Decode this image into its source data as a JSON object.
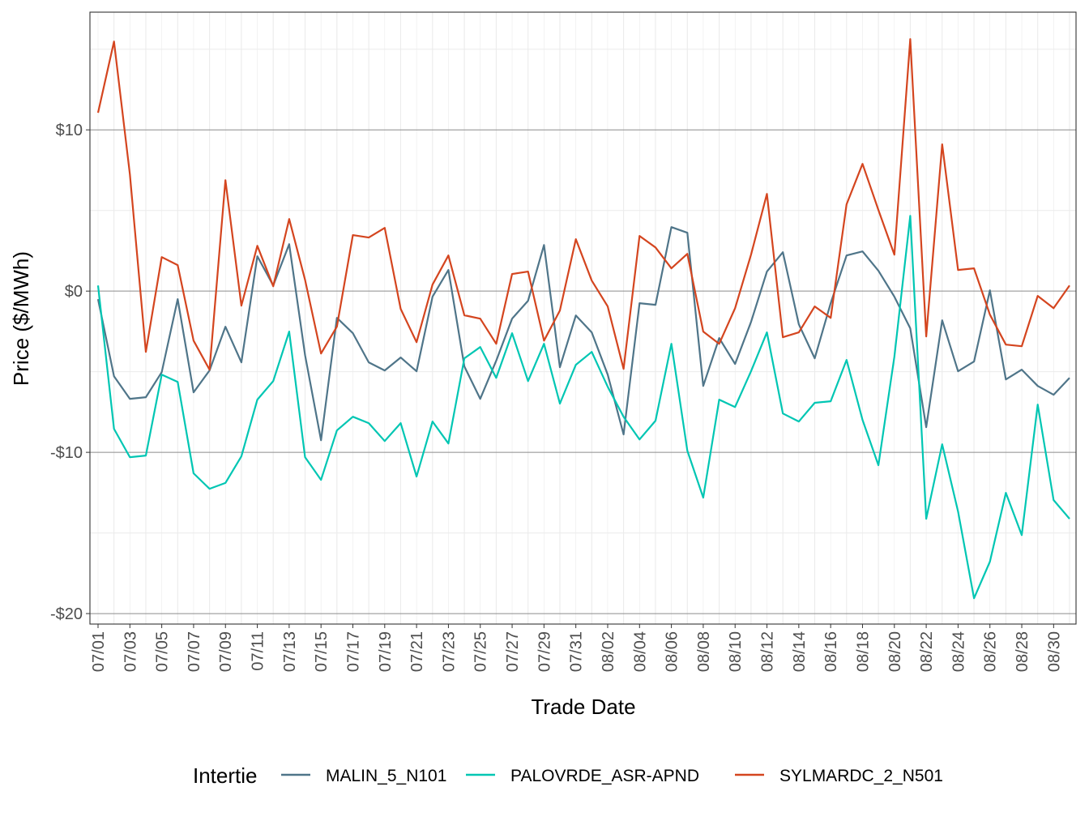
{
  "chart_data": {
    "type": "line",
    "xlabel": "Trade Date",
    "ylabel": "Price ($/MWh)",
    "ylim": [
      -20.65,
      17.3
    ],
    "y_ticks": [
      {
        "value": 10,
        "label": "$10"
      },
      {
        "value": 0,
        "label": "$0"
      },
      {
        "value": -10,
        "label": "-$10"
      },
      {
        "value": -20,
        "label": "-$20"
      }
    ],
    "grid": true,
    "legend_position": "bottom",
    "legend_title": "Intertie",
    "x": [
      "07/01",
      "07/02",
      "07/03",
      "07/04",
      "07/05",
      "07/06",
      "07/07",
      "07/08",
      "07/09",
      "07/10",
      "07/11",
      "07/12",
      "07/13",
      "07/14",
      "07/15",
      "07/16",
      "07/17",
      "07/18",
      "07/19",
      "07/20",
      "07/21",
      "07/22",
      "07/23",
      "07/24",
      "07/25",
      "07/26",
      "07/27",
      "07/28",
      "07/29",
      "07/30",
      "07/31",
      "08/01",
      "08/02",
      "08/03",
      "08/04",
      "08/05",
      "08/06",
      "08/07",
      "08/08",
      "08/09",
      "08/10",
      "08/11",
      "08/12",
      "08/13",
      "08/14",
      "08/15",
      "08/16",
      "08/17",
      "08/18",
      "08/19",
      "08/20",
      "08/21",
      "08/22",
      "08/23",
      "08/24",
      "08/25",
      "08/26",
      "08/27",
      "08/28",
      "08/29",
      "08/30",
      "08/31"
    ],
    "x_tick_labels": [
      "07/01",
      "07/03",
      "07/05",
      "07/07",
      "07/09",
      "07/11",
      "07/13",
      "07/15",
      "07/17",
      "07/19",
      "07/21",
      "07/23",
      "07/25",
      "07/27",
      "07/29",
      "07/31",
      "08/02",
      "08/04",
      "08/06",
      "08/08",
      "08/10",
      "08/12",
      "08/14",
      "08/16",
      "08/18",
      "08/20",
      "08/22",
      "08/24",
      "08/26",
      "08/28",
      "08/30"
    ],
    "series": [
      {
        "name": "MALIN_5_N101",
        "color": "#4f7589",
        "values": [
          -0.5,
          -5.28,
          -6.68,
          -6.58,
          -5.03,
          -0.5,
          -6.28,
          -4.92,
          -2.21,
          -4.42,
          2.16,
          0.35,
          2.91,
          -3.97,
          -9.25,
          -1.66,
          -2.61,
          -4.42,
          -4.92,
          -4.12,
          -4.97,
          -0.35,
          1.31,
          -4.67,
          -6.68,
          -4.32,
          -1.71,
          -0.6,
          2.86,
          -4.72,
          -1.51,
          -2.56,
          -5.18,
          -8.89,
          -0.75,
          -0.85,
          3.97,
          3.62,
          -5.88,
          -2.91,
          -4.52,
          -1.91,
          1.21,
          2.41,
          -2.06,
          -4.17,
          -0.75,
          2.21,
          2.46,
          1.26,
          -0.35,
          -2.31,
          -8.44,
          -1.81,
          -4.97,
          -4.37,
          0.05,
          -5.48,
          -4.87,
          -5.88,
          -6.43,
          -5.38
        ]
      },
      {
        "name": "PALOVRDE_ASR-APND",
        "color": "#00c6b3",
        "values": [
          0.35,
          -8.54,
          -10.3,
          -10.2,
          -5.18,
          -5.63,
          -11.3,
          -12.26,
          -11.9,
          -10.25,
          -6.73,
          -5.58,
          -2.51,
          -10.3,
          -11.71,
          -8.64,
          -7.79,
          -8.19,
          -9.3,
          -8.19,
          -11.5,
          -8.09,
          -9.45,
          -4.17,
          -3.47,
          -5.38,
          -2.61,
          -5.58,
          -3.27,
          -6.98,
          -4.57,
          -3.77,
          -5.93,
          -7.79,
          -9.2,
          -8.04,
          -3.27,
          -9.9,
          -12.81,
          -6.73,
          -7.19,
          -4.97,
          -2.56,
          -7.59,
          -8.09,
          -6.93,
          -6.83,
          -4.27,
          -7.99,
          -10.8,
          -4.07,
          4.67,
          -14.12,
          -9.5,
          -13.67,
          -19.05,
          -16.78,
          -12.51,
          -15.13,
          -7.04,
          -12.96,
          -14.12
        ]
      },
      {
        "name": "SYLMARDC_2_N501",
        "color": "#d4451f",
        "values": [
          11.06,
          15.48,
          7.24,
          -3.77,
          2.11,
          1.61,
          -3.07,
          -4.87,
          6.88,
          -0.9,
          2.81,
          0.3,
          4.47,
          0.7,
          -3.87,
          -2.2,
          3.47,
          3.32,
          3.92,
          -1.1,
          -3.17,
          0.4,
          2.21,
          -1.5,
          -1.71,
          -3.27,
          1.06,
          1.21,
          -3.07,
          -1.2,
          3.22,
          0.65,
          -0.95,
          -4.82,
          3.42,
          2.71,
          1.41,
          2.31,
          -2.51,
          -3.27,
          -1.06,
          2.26,
          6.03,
          -2.86,
          -2.56,
          -0.95,
          -1.66,
          5.38,
          7.89,
          5.03,
          2.26,
          15.63,
          -2.81,
          9.1,
          1.31,
          1.41,
          -1.46,
          -3.32,
          -3.42,
          -0.3,
          -1.06,
          0.35
        ]
      }
    ]
  }
}
